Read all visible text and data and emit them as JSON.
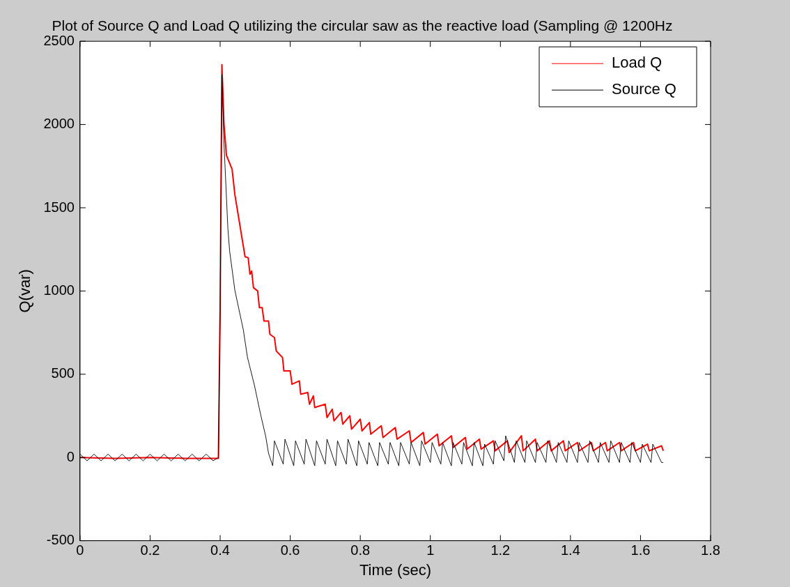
{
  "chart_data": {
    "type": "line",
    "title": "Plot of Source Q and Load Q utilizing the circular saw as the reactive load (Sampling @ 1200Hz",
    "xlabel": "Time (sec)",
    "ylabel": "Q(var)",
    "xlim": [
      0,
      1.8
    ],
    "xticks": [
      0,
      0.2,
      0.4,
      0.6,
      0.8,
      1,
      1.2,
      1.4,
      1.6,
      1.8
    ],
    "ylim": [
      -500,
      2500
    ],
    "yticks": [
      -500,
      0,
      500,
      1000,
      1500,
      2000,
      2500
    ],
    "grid": false,
    "legend": "top right",
    "marker": "none",
    "line_style": "solid",
    "series": [
      {
        "name": "Load Q",
        "color": "#ff0000",
        "x": [
          0,
          0.1,
          0.2,
          0.3,
          0.395,
          0.4,
          0.405,
          0.411,
          0.418,
          0.434,
          0.442,
          0.455,
          0.471,
          0.48,
          0.485,
          0.49,
          0.495,
          0.507,
          0.512,
          0.52,
          0.525,
          0.538,
          0.542,
          0.555,
          0.56,
          0.578,
          0.582,
          0.6,
          0.605,
          0.626,
          0.63,
          0.65,
          0.655,
          0.666,
          0.67,
          0.7,
          0.705,
          0.72,
          0.725,
          0.745,
          0.75,
          0.77,
          0.775,
          0.8,
          0.805,
          0.826,
          0.83,
          0.86,
          0.865,
          0.9,
          0.905,
          0.94,
          0.945,
          0.98,
          0.985,
          1.02,
          1.025,
          1.06,
          1.065,
          1.1,
          1.105,
          1.14,
          1.145,
          1.18,
          1.185,
          1.22,
          1.225,
          1.26,
          1.265,
          1.3,
          1.305,
          1.34,
          1.345,
          1.38,
          1.385,
          1.42,
          1.425,
          1.46,
          1.465,
          1.5,
          1.505,
          1.54,
          1.545,
          1.58,
          1.585,
          1.62,
          1.625,
          1.66,
          1.665
        ],
        "values": [
          0,
          -5,
          0,
          -5,
          -5,
          900,
          2360,
          2000,
          1815,
          1732,
          1579,
          1412,
          1206,
          1200,
          1100,
          1120,
          1020,
          1000,
          900,
          900,
          820,
          820,
          740,
          720,
          640,
          600,
          520,
          520,
          440,
          460,
          380,
          390,
          320,
          370,
          300,
          320,
          240,
          290,
          220,
          270,
          200,
          250,
          170,
          230,
          160,
          210,
          140,
          190,
          120,
          180,
          110,
          160,
          90,
          150,
          80,
          140,
          70,
          130,
          60,
          120,
          50,
          110,
          50,
          100,
          40,
          100,
          30,
          130,
          40,
          110,
          40,
          100,
          40,
          100,
          40,
          90,
          40,
          90,
          40,
          90,
          40,
          90,
          40,
          90,
          40,
          80,
          40,
          70,
          40
        ]
      },
      {
        "name": "Source Q",
        "color": "#000000",
        "x": [
          0,
          0.02,
          0.04,
          0.06,
          0.08,
          0.1,
          0.12,
          0.14,
          0.16,
          0.18,
          0.2,
          0.22,
          0.24,
          0.26,
          0.28,
          0.3,
          0.32,
          0.34,
          0.36,
          0.38,
          0.395,
          0.4,
          0.405,
          0.411,
          0.422,
          0.427,
          0.442,
          0.466,
          0.478,
          0.498,
          0.515,
          0.53,
          0.538,
          0.55,
          0.555,
          0.58,
          0.585,
          0.61,
          0.615,
          0.64,
          0.645,
          0.67,
          0.675,
          0.7,
          0.705,
          0.73,
          0.735,
          0.76,
          0.765,
          0.79,
          0.795,
          0.82,
          0.825,
          0.85,
          0.855,
          0.88,
          0.885,
          0.91,
          0.915,
          0.94,
          0.945,
          0.97,
          0.975,
          1.0,
          1.005,
          1.03,
          1.035,
          1.06,
          1.065,
          1.09,
          1.095,
          1.12,
          1.125,
          1.15,
          1.155,
          1.18,
          1.185,
          1.21,
          1.215,
          1.24,
          1.245,
          1.27,
          1.275,
          1.3,
          1.305,
          1.33,
          1.335,
          1.36,
          1.365,
          1.39,
          1.395,
          1.42,
          1.425,
          1.45,
          1.455,
          1.48,
          1.485,
          1.51,
          1.515,
          1.54,
          1.545,
          1.57,
          1.575,
          1.6,
          1.605,
          1.63,
          1.635,
          1.66,
          1.665
        ],
        "values": [
          20,
          -20,
          20,
          -20,
          20,
          -20,
          20,
          -20,
          20,
          -20,
          20,
          -20,
          20,
          -20,
          20,
          -20,
          20,
          -20,
          20,
          -20,
          0,
          900,
          2300,
          1882,
          1377,
          1241,
          1004,
          768,
          601,
          432,
          263,
          127,
          26,
          -50,
          100,
          -40,
          110,
          -50,
          100,
          -40,
          110,
          -50,
          100,
          -40,
          110,
          -50,
          100,
          -40,
          110,
          -50,
          100,
          -40,
          90,
          -50,
          90,
          -40,
          90,
          -50,
          90,
          -40,
          90,
          -50,
          100,
          -30,
          90,
          -40,
          90,
          -50,
          90,
          -40,
          90,
          -50,
          90,
          -50,
          80,
          -40,
          100,
          -20,
          130,
          -30,
          100,
          -30,
          100,
          -30,
          90,
          -30,
          100,
          -30,
          90,
          -30,
          100,
          -30,
          90,
          -30,
          100,
          -30,
          90,
          -30,
          100,
          -30,
          90,
          -30,
          90,
          -30,
          80,
          -30,
          80,
          -30,
          -30
        ]
      }
    ]
  }
}
